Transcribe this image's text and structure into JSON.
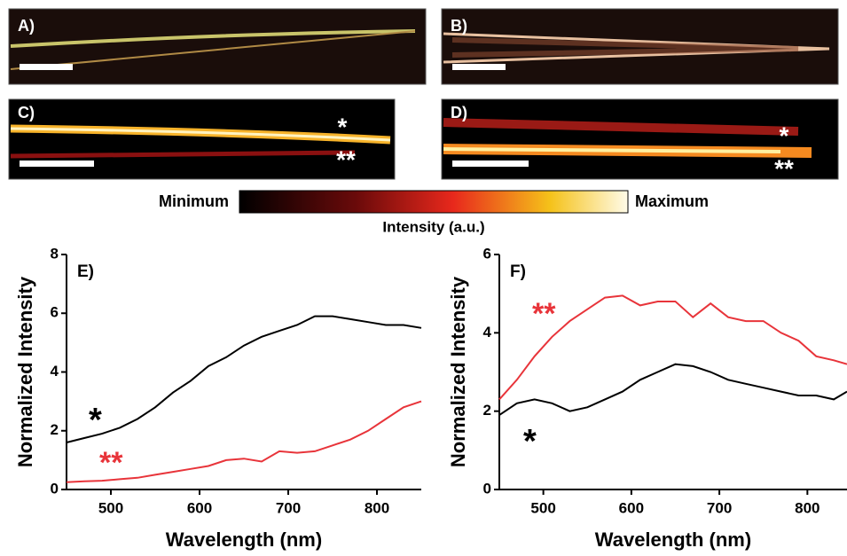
{
  "panels": [
    {
      "label": "A)"
    },
    {
      "label": "B)"
    },
    {
      "label": "C)",
      "marks": [
        "*",
        "**"
      ]
    },
    {
      "label": "D)",
      "marks": [
        "*",
        "**"
      ]
    }
  ],
  "colorbar": {
    "min_label": "Minimum",
    "max_label": "Maximum",
    "title": "Intensity (a.u.)"
  },
  "chart_data": [
    {
      "type": "line",
      "panel_label": "E)",
      "x_label": "Wavelength (nm)",
      "y_label": "Normalized Intensity",
      "x": [
        450,
        470,
        490,
        510,
        530,
        550,
        570,
        590,
        610,
        630,
        650,
        670,
        690,
        710,
        730,
        750,
        770,
        790,
        810,
        830,
        850
      ],
      "xlim": [
        450,
        850
      ],
      "xticks": [
        500,
        600,
        700,
        800
      ],
      "ylim": [
        0,
        8
      ],
      "yticks": [
        0,
        2,
        4,
        6,
        8
      ],
      "series": [
        {
          "name": "*",
          "color": "#000000",
          "values": [
            1.6,
            1.75,
            1.9,
            2.1,
            2.4,
            2.8,
            3.3,
            3.7,
            4.2,
            4.5,
            4.9,
            5.2,
            5.4,
            5.6,
            5.9,
            5.9,
            5.8,
            5.7,
            5.6,
            5.6,
            5.5
          ]
        },
        {
          "name": "**",
          "color": "#e8343a",
          "values": [
            0.25,
            0.28,
            0.3,
            0.35,
            0.4,
            0.5,
            0.6,
            0.7,
            0.8,
            1.0,
            1.05,
            0.95,
            1.3,
            1.25,
            1.3,
            1.5,
            1.7,
            2.0,
            2.4,
            2.8,
            3.0
          ]
        }
      ]
    },
    {
      "type": "line",
      "panel_label": "F)",
      "x_label": "Wavelength (nm)",
      "y_label": "Normalized Intensity",
      "x": [
        450,
        470,
        490,
        510,
        530,
        550,
        570,
        590,
        610,
        630,
        650,
        670,
        690,
        710,
        730,
        750,
        770,
        790,
        810,
        830,
        845
      ],
      "xlim": [
        450,
        845
      ],
      "xticks": [
        500,
        600,
        700,
        800
      ],
      "ylim": [
        0,
        6
      ],
      "yticks": [
        0,
        2,
        4,
        6
      ],
      "series": [
        {
          "name": "**",
          "color": "#e8343a",
          "values": [
            2.3,
            2.8,
            3.4,
            3.9,
            4.3,
            4.6,
            4.9,
            4.95,
            4.7,
            4.8,
            4.8,
            4.4,
            4.75,
            4.4,
            4.3,
            4.3,
            4.0,
            3.8,
            3.4,
            3.3,
            3.2
          ]
        },
        {
          "name": "*",
          "color": "#000000",
          "values": [
            1.9,
            2.2,
            2.3,
            2.2,
            2.0,
            2.1,
            2.3,
            2.5,
            2.8,
            3.0,
            3.2,
            3.15,
            3.0,
            2.8,
            2.7,
            2.6,
            2.5,
            2.4,
            2.4,
            2.3,
            2.5
          ]
        }
      ]
    }
  ]
}
